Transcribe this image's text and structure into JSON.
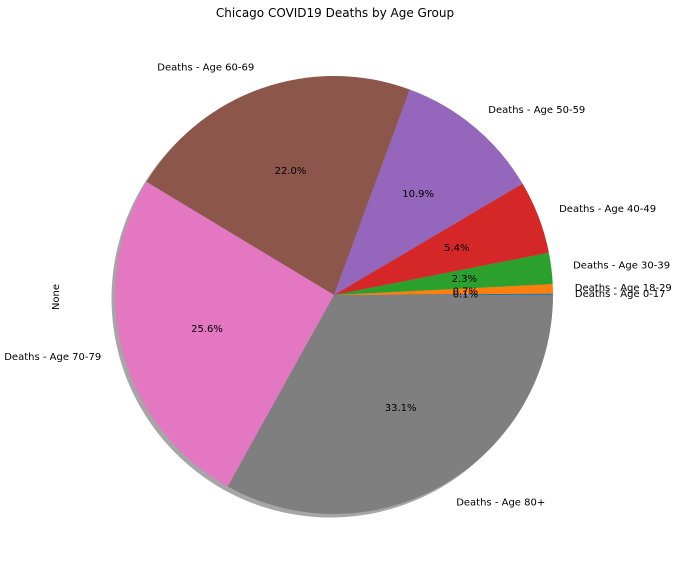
{
  "chart_data": {
    "type": "pie",
    "title": "Chicago COVID19 Deaths by Age Group",
    "ylabel": "None",
    "start_angle_deg": 0,
    "direction": "counterclockwise",
    "shadow": true,
    "slices": [
      {
        "label": "Deaths - Age 0-17",
        "value": 0.1,
        "pct_label": "0.1%",
        "color": "#1f77b4"
      },
      {
        "label": "Deaths - Age 18-29",
        "value": 0.7,
        "pct_label": "0.7%",
        "color": "#ff7f0e"
      },
      {
        "label": "Deaths - Age 30-39",
        "value": 2.3,
        "pct_label": "2.3%",
        "color": "#2ca02c"
      },
      {
        "label": "Deaths - Age 40-49",
        "value": 5.4,
        "pct_label": "5.4%",
        "color": "#d62728"
      },
      {
        "label": "Deaths - Age 50-59",
        "value": 10.9,
        "pct_label": "10.9%",
        "color": "#9467bd"
      },
      {
        "label": "Deaths - Age 60-69",
        "value": 22.0,
        "pct_label": "22.0%",
        "color": "#8c564b"
      },
      {
        "label": "Deaths - Age 70-79",
        "value": 25.6,
        "pct_label": "25.6%",
        "color": "#e377c2"
      },
      {
        "label": "Deaths - Age 80+",
        "value": 33.1,
        "pct_label": "33.1%",
        "color": "#7f7f7f"
      }
    ]
  }
}
